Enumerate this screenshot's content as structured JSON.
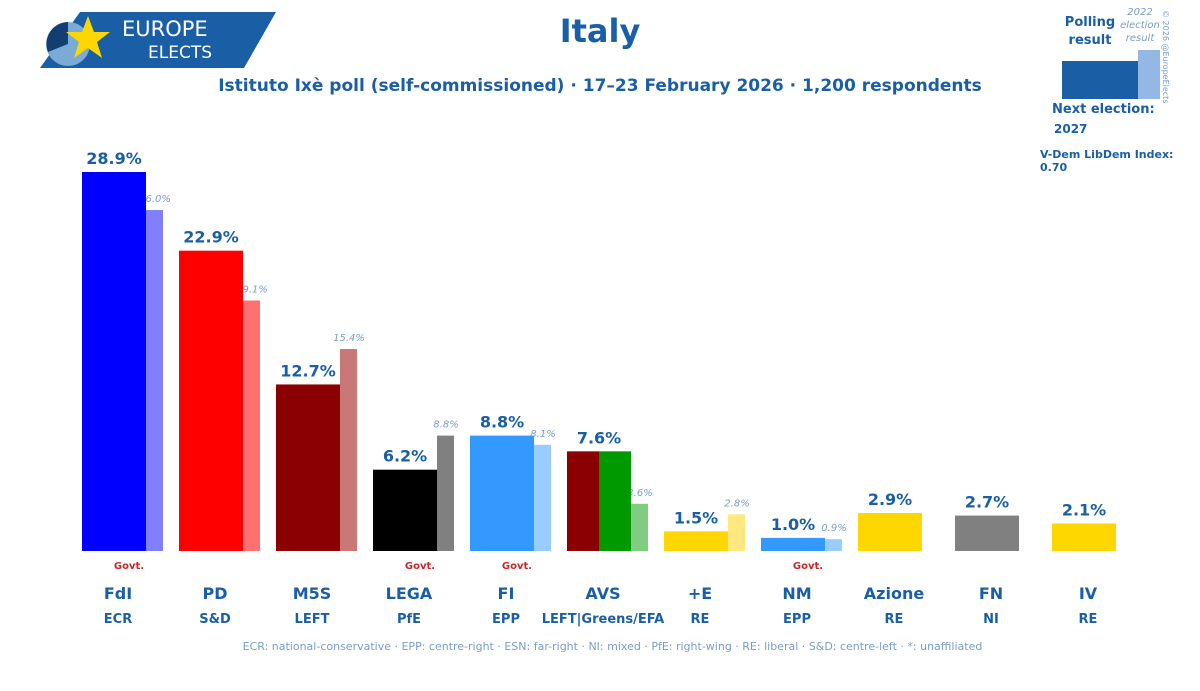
{
  "header": {
    "logo_line1": "EUROPE",
    "logo_line2": "ELECTS",
    "title": "Italy",
    "subtitle": "Istituto Ixè poll (self-commissioned) · 17–23 February 2026 · 1,200 respondents"
  },
  "legend": {
    "polling_result": "Polling result",
    "previous_result": "2022 election result",
    "copyright": "© 2026 @EuropeElects",
    "next_election_label": "Next election:",
    "next_election_year": "2027",
    "vdem": "V-Dem LibDem Index: 0.70"
  },
  "footer": "ECR: national-conservative · EPP: centre-right · ESN: far-right · NI: mixed · PfE: right-wing · RE: liberal · S&D: centre-left · *: unaffiliated",
  "govt_text": "Govt.",
  "colors": {
    "title": "#1a5fa6",
    "govt": "#c62828",
    "prev_label": "#7a9cc7"
  },
  "chart_data": {
    "type": "bar",
    "ylim": [
      0,
      30
    ],
    "series": [
      {
        "name": "Polling result",
        "values": [
          28.9,
          22.9,
          12.7,
          6.2,
          8.8,
          7.6,
          1.5,
          1.0,
          2.9,
          2.7,
          2.1
        ]
      },
      {
        "name": "2022 election result",
        "values": [
          26.0,
          19.1,
          15.4,
          8.8,
          8.1,
          3.6,
          2.8,
          0.9,
          null,
          null,
          null
        ]
      }
    ],
    "parties": [
      {
        "name": "FdI",
        "group": "ECR",
        "value": 28.9,
        "value_label": "28.9%",
        "prev": 26.0,
        "prev_label": "26.0%",
        "govt": true,
        "color": "#0000ff",
        "prev_color": "#8080ff"
      },
      {
        "name": "PD",
        "group": "S&D",
        "value": 22.9,
        "value_label": "22.9%",
        "prev": 19.1,
        "prev_label": "19.1%",
        "govt": false,
        "color": "#ff0000",
        "prev_color": "#ff7070"
      },
      {
        "name": "M5S",
        "group": "LEFT",
        "value": 12.7,
        "value_label": "12.7%",
        "prev": 15.4,
        "prev_label": "15.4%",
        "govt": false,
        "color": "#8b0000",
        "prev_color": "#c97878"
      },
      {
        "name": "LEGA",
        "group": "PfE",
        "value": 6.2,
        "value_label": "6.2%",
        "prev": 8.8,
        "prev_label": "8.8%",
        "govt": true,
        "color": "#000000",
        "prev_color": "#808080"
      },
      {
        "name": "FI",
        "group": "EPP",
        "value": 8.8,
        "value_label": "8.8%",
        "prev": 8.1,
        "prev_label": "8.1%",
        "govt": true,
        "color": "#3399ff",
        "prev_color": "#99ccff"
      },
      {
        "name": "AVS",
        "group": "LEFT|Greens/EFA",
        "value": 7.6,
        "value_label": "7.6%",
        "prev": 3.6,
        "prev_label": "3.6%",
        "govt": false,
        "color": "#8b0000",
        "color2": "#009900",
        "prev_color": "#80cc80"
      },
      {
        "name": "+E",
        "group": "RE",
        "value": 1.5,
        "value_label": "1.5%",
        "prev": 2.8,
        "prev_label": "2.8%",
        "govt": false,
        "color": "#ffd700",
        "prev_color": "#ffe880"
      },
      {
        "name": "NM",
        "group": "EPP",
        "value": 1.0,
        "value_label": "1.0%",
        "prev": 0.9,
        "prev_label": "0.9%",
        "govt": true,
        "color": "#3399ff",
        "prev_color": "#99ccff"
      },
      {
        "name": "Azione",
        "group": "RE",
        "value": 2.9,
        "value_label": "2.9%",
        "prev": null,
        "prev_label": "",
        "govt": false,
        "color": "#ffd700",
        "prev_color": ""
      },
      {
        "name": "FN",
        "group": "NI",
        "value": 2.7,
        "value_label": "2.7%",
        "prev": null,
        "prev_label": "",
        "govt": false,
        "color": "#808080",
        "prev_color": ""
      },
      {
        "name": "IV",
        "group": "RE",
        "value": 2.1,
        "value_label": "2.1%",
        "prev": null,
        "prev_label": "",
        "govt": false,
        "color": "#ffd700",
        "prev_color": ""
      }
    ]
  }
}
